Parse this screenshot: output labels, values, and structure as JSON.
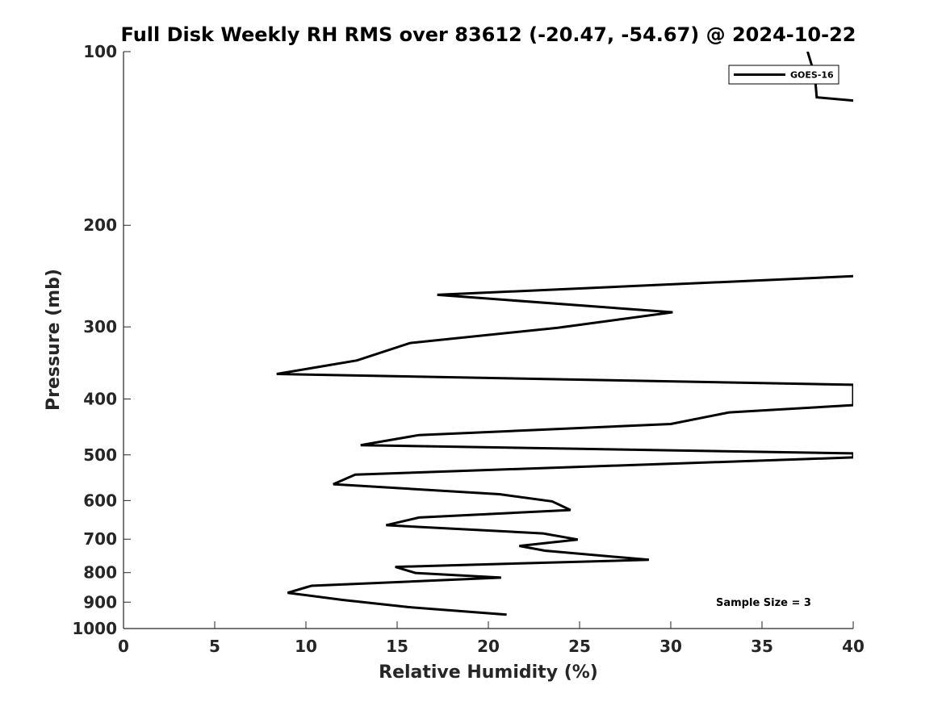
{
  "chart_data": {
    "type": "line",
    "title": "Full Disk Weekly RH RMS over 83612 (-20.47, -54.67) @ 2024-10-22",
    "xlabel": "Relative Humidity (%)",
    "ylabel": "Pressure (mb)",
    "xlim": [
      0,
      40
    ],
    "ylim": [
      100,
      1000
    ],
    "yscale": "log",
    "y_reversed": true,
    "grid": false,
    "xticks": [
      0,
      5,
      10,
      15,
      20,
      25,
      30,
      35,
      40
    ],
    "yticks": [
      100,
      200,
      300,
      400,
      500,
      600,
      700,
      800,
      900,
      1000
    ],
    "legend_position": "top-right",
    "annotation": "Sample Size = 3",
    "line_color": "#000000",
    "series": [
      {
        "name": "GOES-16",
        "x": [
          37.5,
          37.9,
          38.0,
          40.5,
          40.5,
          40.0,
          17.2,
          30.1,
          23.8,
          15.7,
          12.8,
          8.4,
          40.0,
          40.0,
          33.2,
          30.0,
          16.2,
          13.0,
          40.0,
          40.0,
          12.7,
          11.5,
          20.6,
          23.5,
          24.5,
          16.2,
          14.4,
          23.0,
          24.9,
          21.7,
          23.1,
          28.8,
          14.9,
          16.0,
          20.7,
          10.3,
          9.0,
          12.0,
          15.6,
          21.0
        ],
        "y": [
          100,
          110,
          120,
          122,
          245,
          245,
          264,
          283,
          301,
          320,
          343,
          362,
          378,
          410,
          422,
          442,
          462,
          481,
          497,
          505,
          541,
          562,
          585,
          602,
          623,
          642,
          662,
          684,
          701,
          719,
          733,
          760,
          782,
          801,
          816,
          843,
          867,
          892,
          918,
          946
        ]
      }
    ]
  }
}
